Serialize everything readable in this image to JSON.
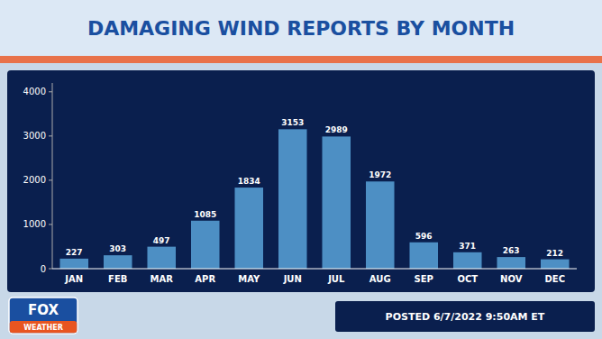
{
  "chart_data": {
    "type": "bar",
    "title": "DAMAGING WIND REPORTS BY MONTH",
    "categories": [
      "JAN",
      "FEB",
      "MAR",
      "APR",
      "MAY",
      "JUN",
      "JUL",
      "AUG",
      "SEP",
      "OCT",
      "NOV",
      "DEC"
    ],
    "values": [
      227,
      303,
      497,
      1085,
      1834,
      3153,
      2989,
      1972,
      596,
      371,
      263,
      212
    ],
    "color": "#4d8fc4",
    "ylim": [
      0,
      4200
    ],
    "yticks": [
      0,
      1000,
      2000,
      3000,
      4000
    ],
    "grid": false,
    "data_labels": true,
    "annotations": [
      "POSTED 6/7/2022 9:50AM ET",
      "FOX",
      "WEATHER"
    ]
  }
}
